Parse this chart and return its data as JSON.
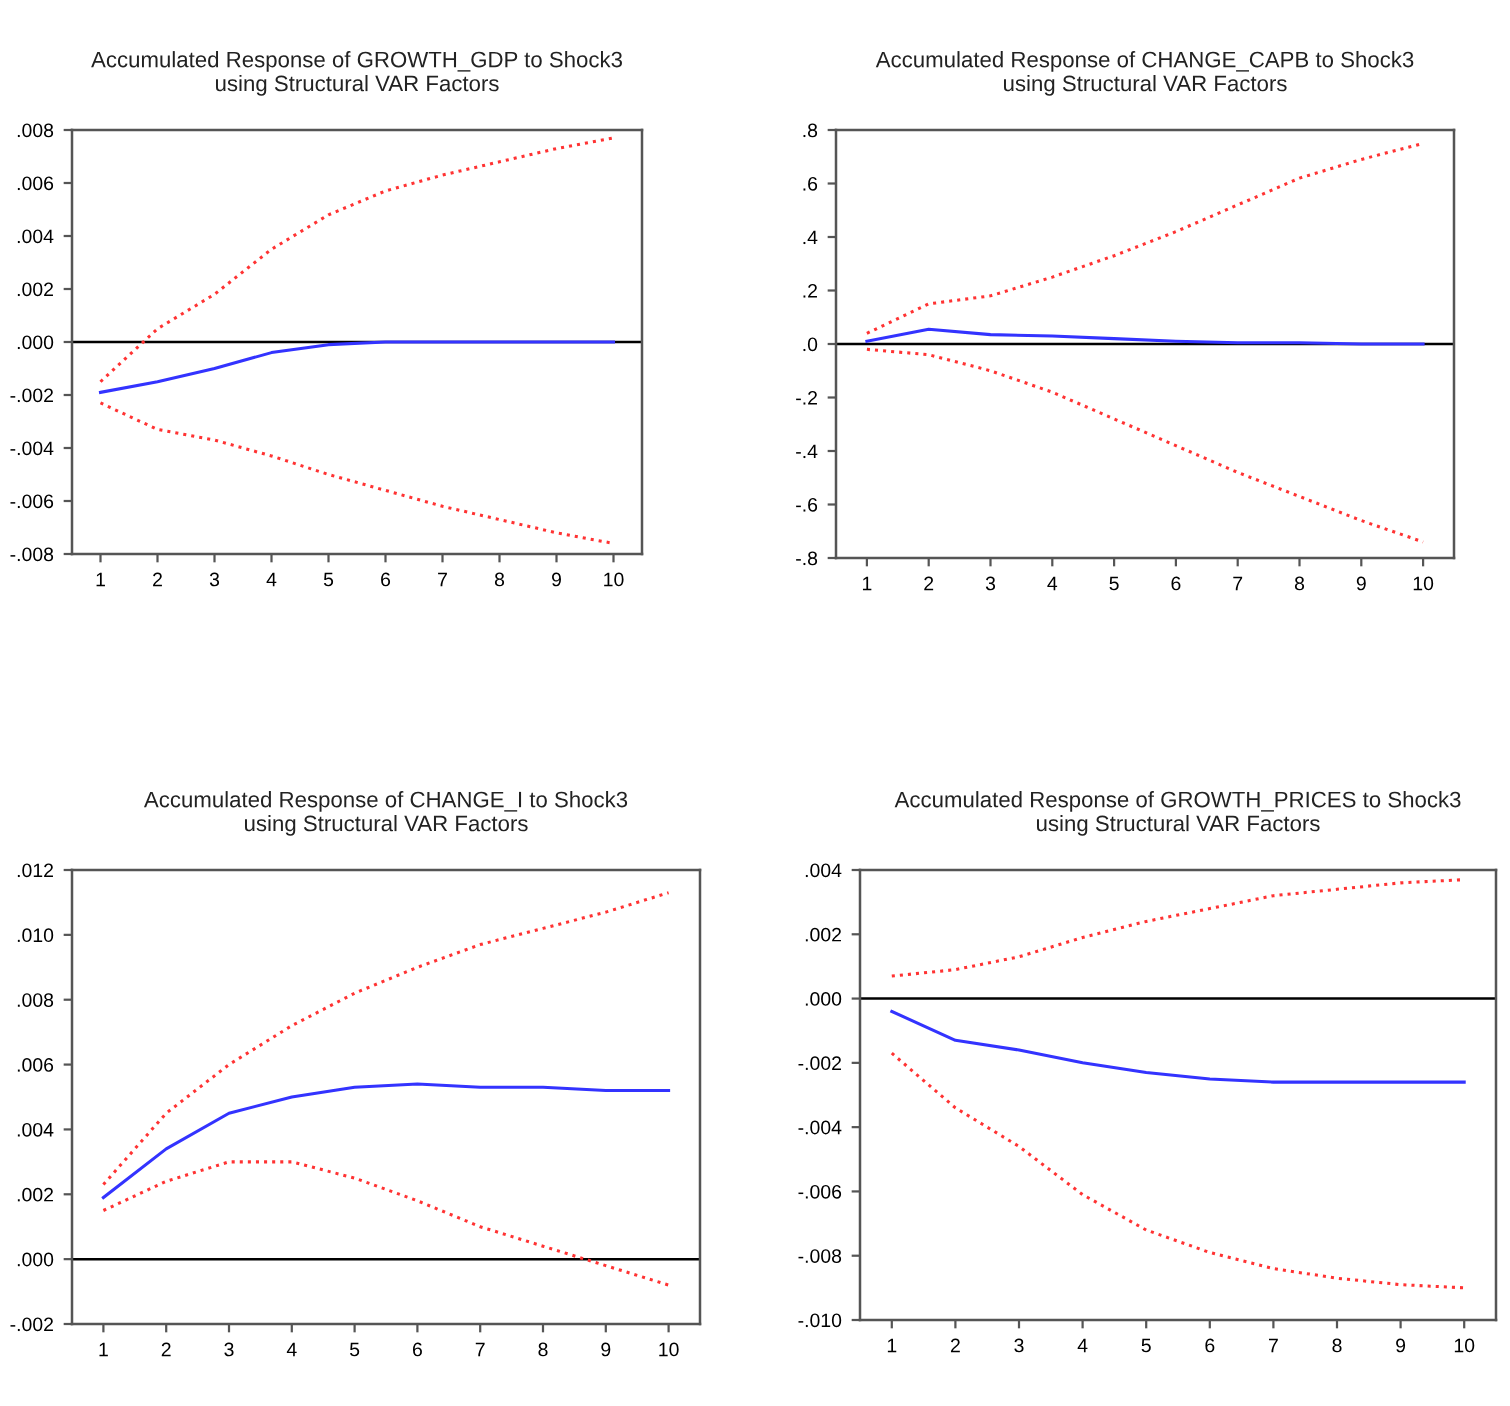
{
  "chart_data": [
    {
      "type": "line",
      "title": "Accumulated Response of GROWTH_GDP to Shock3\nusing Structural VAR Factors",
      "categories": [
        "1",
        "2",
        "3",
        "4",
        "5",
        "6",
        "7",
        "8",
        "9",
        "10"
      ],
      "ylim": [
        -0.008,
        0.008
      ],
      "yticks": [
        {
          "value": -0.008,
          "label": "-.008"
        },
        {
          "value": -0.006,
          "label": "-.006"
        },
        {
          "value": -0.004,
          "label": "-.004"
        },
        {
          "value": -0.002,
          "label": "-.002"
        },
        {
          "value": 0,
          "label": ".000"
        },
        {
          "value": 0.002,
          "label": ".002"
        },
        {
          "value": 0.004,
          "label": ".004"
        },
        {
          "value": 0.006,
          "label": ".006"
        },
        {
          "value": 0.008,
          "label": ".008"
        }
      ],
      "ref_lines": [
        {
          "axis": "y",
          "value": 0,
          "color": "#000000",
          "line_style": "solid"
        }
      ],
      "series": [
        {
          "color": "#ff3333",
          "line_style": "dotted",
          "values": [
            -0.0015,
            0.0005,
            0.0018,
            0.0035,
            0.0048,
            0.0057,
            0.0063,
            0.0068,
            0.0073,
            0.0077
          ]
        },
        {
          "color": "#3333ff",
          "line_style": "solid",
          "values": [
            -0.0019,
            -0.0015,
            -0.001,
            -0.0004,
            -0.0001,
            0.0,
            0.0,
            0.0,
            0.0,
            0.0
          ]
        },
        {
          "color": "#ff3333",
          "line_style": "dotted",
          "values": [
            -0.0023,
            -0.0033,
            -0.0037,
            -0.0043,
            -0.005,
            -0.0056,
            -0.0062,
            -0.0067,
            -0.0072,
            -0.0076
          ]
        }
      ]
    },
    {
      "type": "line",
      "title": "Accumulated Response of CHANGE_CAPB to Shock3\nusing Structural VAR Factors",
      "categories": [
        "1",
        "2",
        "3",
        "4",
        "5",
        "6",
        "7",
        "8",
        "9",
        "10"
      ],
      "ylim": [
        -0.8,
        0.8
      ],
      "yticks": [
        {
          "value": -0.8,
          "label": "-.8"
        },
        {
          "value": -0.6,
          "label": "-.6"
        },
        {
          "value": -0.4,
          "label": "-.4"
        },
        {
          "value": -0.2,
          "label": "-.2"
        },
        {
          "value": 0,
          "label": ".0"
        },
        {
          "value": 0.2,
          "label": ".2"
        },
        {
          "value": 0.4,
          "label": ".4"
        },
        {
          "value": 0.6,
          "label": ".6"
        },
        {
          "value": 0.8,
          "label": ".8"
        }
      ],
      "ref_lines": [
        {
          "axis": "y",
          "value": 0,
          "color": "#000000",
          "line_style": "solid"
        }
      ],
      "series": [
        {
          "color": "#ff3333",
          "line_style": "dotted",
          "values": [
            0.04,
            0.15,
            0.18,
            0.25,
            0.33,
            0.42,
            0.52,
            0.62,
            0.69,
            0.75
          ]
        },
        {
          "color": "#3333ff",
          "line_style": "solid",
          "values": [
            0.01,
            0.055,
            0.035,
            0.03,
            0.02,
            0.01,
            0.005,
            0.005,
            0.0,
            0.0
          ]
        },
        {
          "color": "#ff3333",
          "line_style": "dotted",
          "values": [
            -0.02,
            -0.04,
            -0.1,
            -0.18,
            -0.28,
            -0.38,
            -0.48,
            -0.57,
            -0.66,
            -0.74
          ]
        }
      ]
    },
    {
      "type": "line",
      "title": "Accumulated Response of CHANGE_I to Shock3\nusing Structural VAR Factors",
      "categories": [
        "1",
        "2",
        "3",
        "4",
        "5",
        "6",
        "7",
        "8",
        "9",
        "10"
      ],
      "ylim": [
        -0.002,
        0.012
      ],
      "yticks": [
        {
          "value": -0.002,
          "label": "-.002"
        },
        {
          "value": 0,
          "label": ".000"
        },
        {
          "value": 0.002,
          "label": ".002"
        },
        {
          "value": 0.004,
          "label": ".004"
        },
        {
          "value": 0.006,
          "label": ".006"
        },
        {
          "value": 0.008,
          "label": ".008"
        },
        {
          "value": 0.01,
          "label": ".010"
        },
        {
          "value": 0.012,
          "label": ".012"
        }
      ],
      "ref_lines": [
        {
          "axis": "y",
          "value": 0,
          "color": "#000000",
          "line_style": "solid"
        }
      ],
      "series": [
        {
          "color": "#ff3333",
          "line_style": "dotted",
          "values": [
            0.0023,
            0.0045,
            0.006,
            0.0072,
            0.0082,
            0.009,
            0.0097,
            0.0102,
            0.0107,
            0.0113
          ]
        },
        {
          "color": "#3333ff",
          "line_style": "solid",
          "values": [
            0.0019,
            0.0034,
            0.0045,
            0.005,
            0.0053,
            0.0054,
            0.0053,
            0.0053,
            0.0052,
            0.0052
          ]
        },
        {
          "color": "#ff3333",
          "line_style": "dotted",
          "values": [
            0.0015,
            0.0024,
            0.003,
            0.003,
            0.0025,
            0.0018,
            0.001,
            0.0004,
            -0.0002,
            -0.0008
          ]
        }
      ]
    },
    {
      "type": "line",
      "title": "Accumulated Response of GROWTH_PRICES to Shock3\nusing Structural VAR Factors",
      "categories": [
        "1",
        "2",
        "3",
        "4",
        "5",
        "6",
        "7",
        "8",
        "9",
        "10"
      ],
      "ylim": [
        -0.01,
        0.004
      ],
      "yticks": [
        {
          "value": -0.01,
          "label": "-.010"
        },
        {
          "value": -0.008,
          "label": "-.008"
        },
        {
          "value": -0.006,
          "label": "-.006"
        },
        {
          "value": -0.004,
          "label": "-.004"
        },
        {
          "value": -0.002,
          "label": "-.002"
        },
        {
          "value": 0,
          "label": ".000"
        },
        {
          "value": 0.002,
          "label": ".002"
        },
        {
          "value": 0.004,
          "label": ".004"
        }
      ],
      "ref_lines": [
        {
          "axis": "y",
          "value": 0,
          "color": "#000000",
          "line_style": "solid"
        }
      ],
      "series": [
        {
          "color": "#ff3333",
          "line_style": "dotted",
          "values": [
            0.0007,
            0.0009,
            0.0013,
            0.0019,
            0.0024,
            0.0028,
            0.0032,
            0.0034,
            0.0036,
            0.0037
          ]
        },
        {
          "color": "#3333ff",
          "line_style": "solid",
          "values": [
            -0.0004,
            -0.0013,
            -0.0016,
            -0.002,
            -0.0023,
            -0.0025,
            -0.0026,
            -0.0026,
            -0.0026,
            -0.0026
          ]
        },
        {
          "color": "#ff3333",
          "line_style": "dotted",
          "values": [
            -0.0017,
            -0.0034,
            -0.0046,
            -0.0061,
            -0.0072,
            -0.0079,
            -0.0084,
            -0.0087,
            -0.0089,
            -0.009
          ]
        }
      ]
    }
  ]
}
